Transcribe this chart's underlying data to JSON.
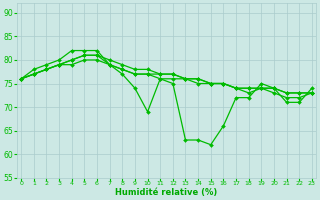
{
  "background_color": "#cce8e4",
  "grid_color": "#aacccc",
  "line_color": "#00bb00",
  "xlabel": "Humidité relative (%)",
  "xlabel_color": "#00aa00",
  "ylim": [
    55,
    92
  ],
  "xlim": [
    -0.3,
    23.3
  ],
  "yticks": [
    55,
    60,
    65,
    70,
    75,
    80,
    85,
    90
  ],
  "xticks": [
    0,
    1,
    2,
    3,
    4,
    5,
    6,
    7,
    8,
    9,
    10,
    11,
    12,
    13,
    14,
    15,
    16,
    17,
    18,
    19,
    20,
    21,
    22,
    23
  ],
  "series": [
    [
      76,
      78,
      79,
      80,
      82,
      82,
      82,
      79,
      77,
      74,
      69,
      76,
      75,
      63,
      63,
      62,
      66,
      72,
      72,
      75,
      74,
      71,
      71,
      74
    ],
    [
      76,
      77,
      78,
      79,
      79,
      80,
      80,
      79,
      78,
      77,
      77,
      76,
      76,
      76,
      75,
      75,
      75,
      74,
      74,
      74,
      74,
      73,
      73,
      73
    ],
    [
      76,
      77,
      78,
      79,
      80,
      81,
      81,
      79,
      78,
      77,
      77,
      77,
      77,
      76,
      76,
      75,
      75,
      74,
      74,
      74,
      74,
      73,
      73,
      73
    ],
    [
      76,
      77,
      78,
      79,
      80,
      81,
      81,
      80,
      79,
      78,
      78,
      77,
      77,
      76,
      76,
      75,
      75,
      74,
      73,
      74,
      73,
      72,
      72,
      73
    ]
  ],
  "marker": "D",
  "markersize": 2,
  "linewidth": 0.9
}
